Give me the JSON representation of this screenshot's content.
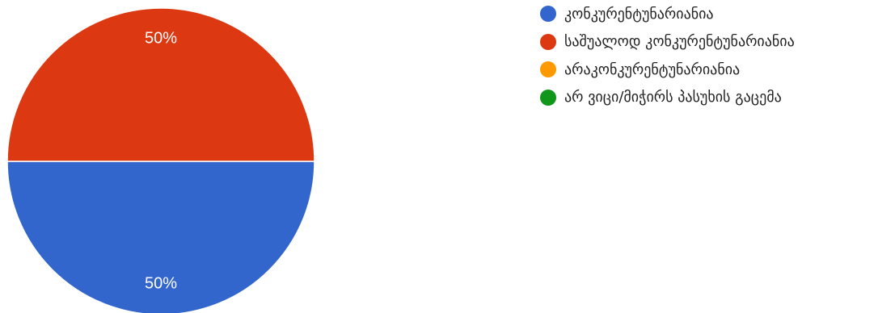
{
  "chart_data": {
    "type": "pie",
    "title": "",
    "legend_placement": "right",
    "start_angle_deg": 90,
    "slices": [
      {
        "label": "კონკურენტუნარიანია",
        "value": 50,
        "percent_label": "50%",
        "color": "#3366cc"
      },
      {
        "label": "საშუალოდ კონკურენტუნარიანია",
        "value": 50,
        "percent_label": "50%",
        "color": "#dc3912"
      },
      {
        "label": "არაკონკურენტუნარიანია",
        "value": 0,
        "percent_label": "",
        "color": "#ff9900"
      },
      {
        "label": "არ ვიცი/მიჭირს პასუხის გაცემა",
        "value": 0,
        "percent_label": "",
        "color": "#109618"
      }
    ]
  }
}
